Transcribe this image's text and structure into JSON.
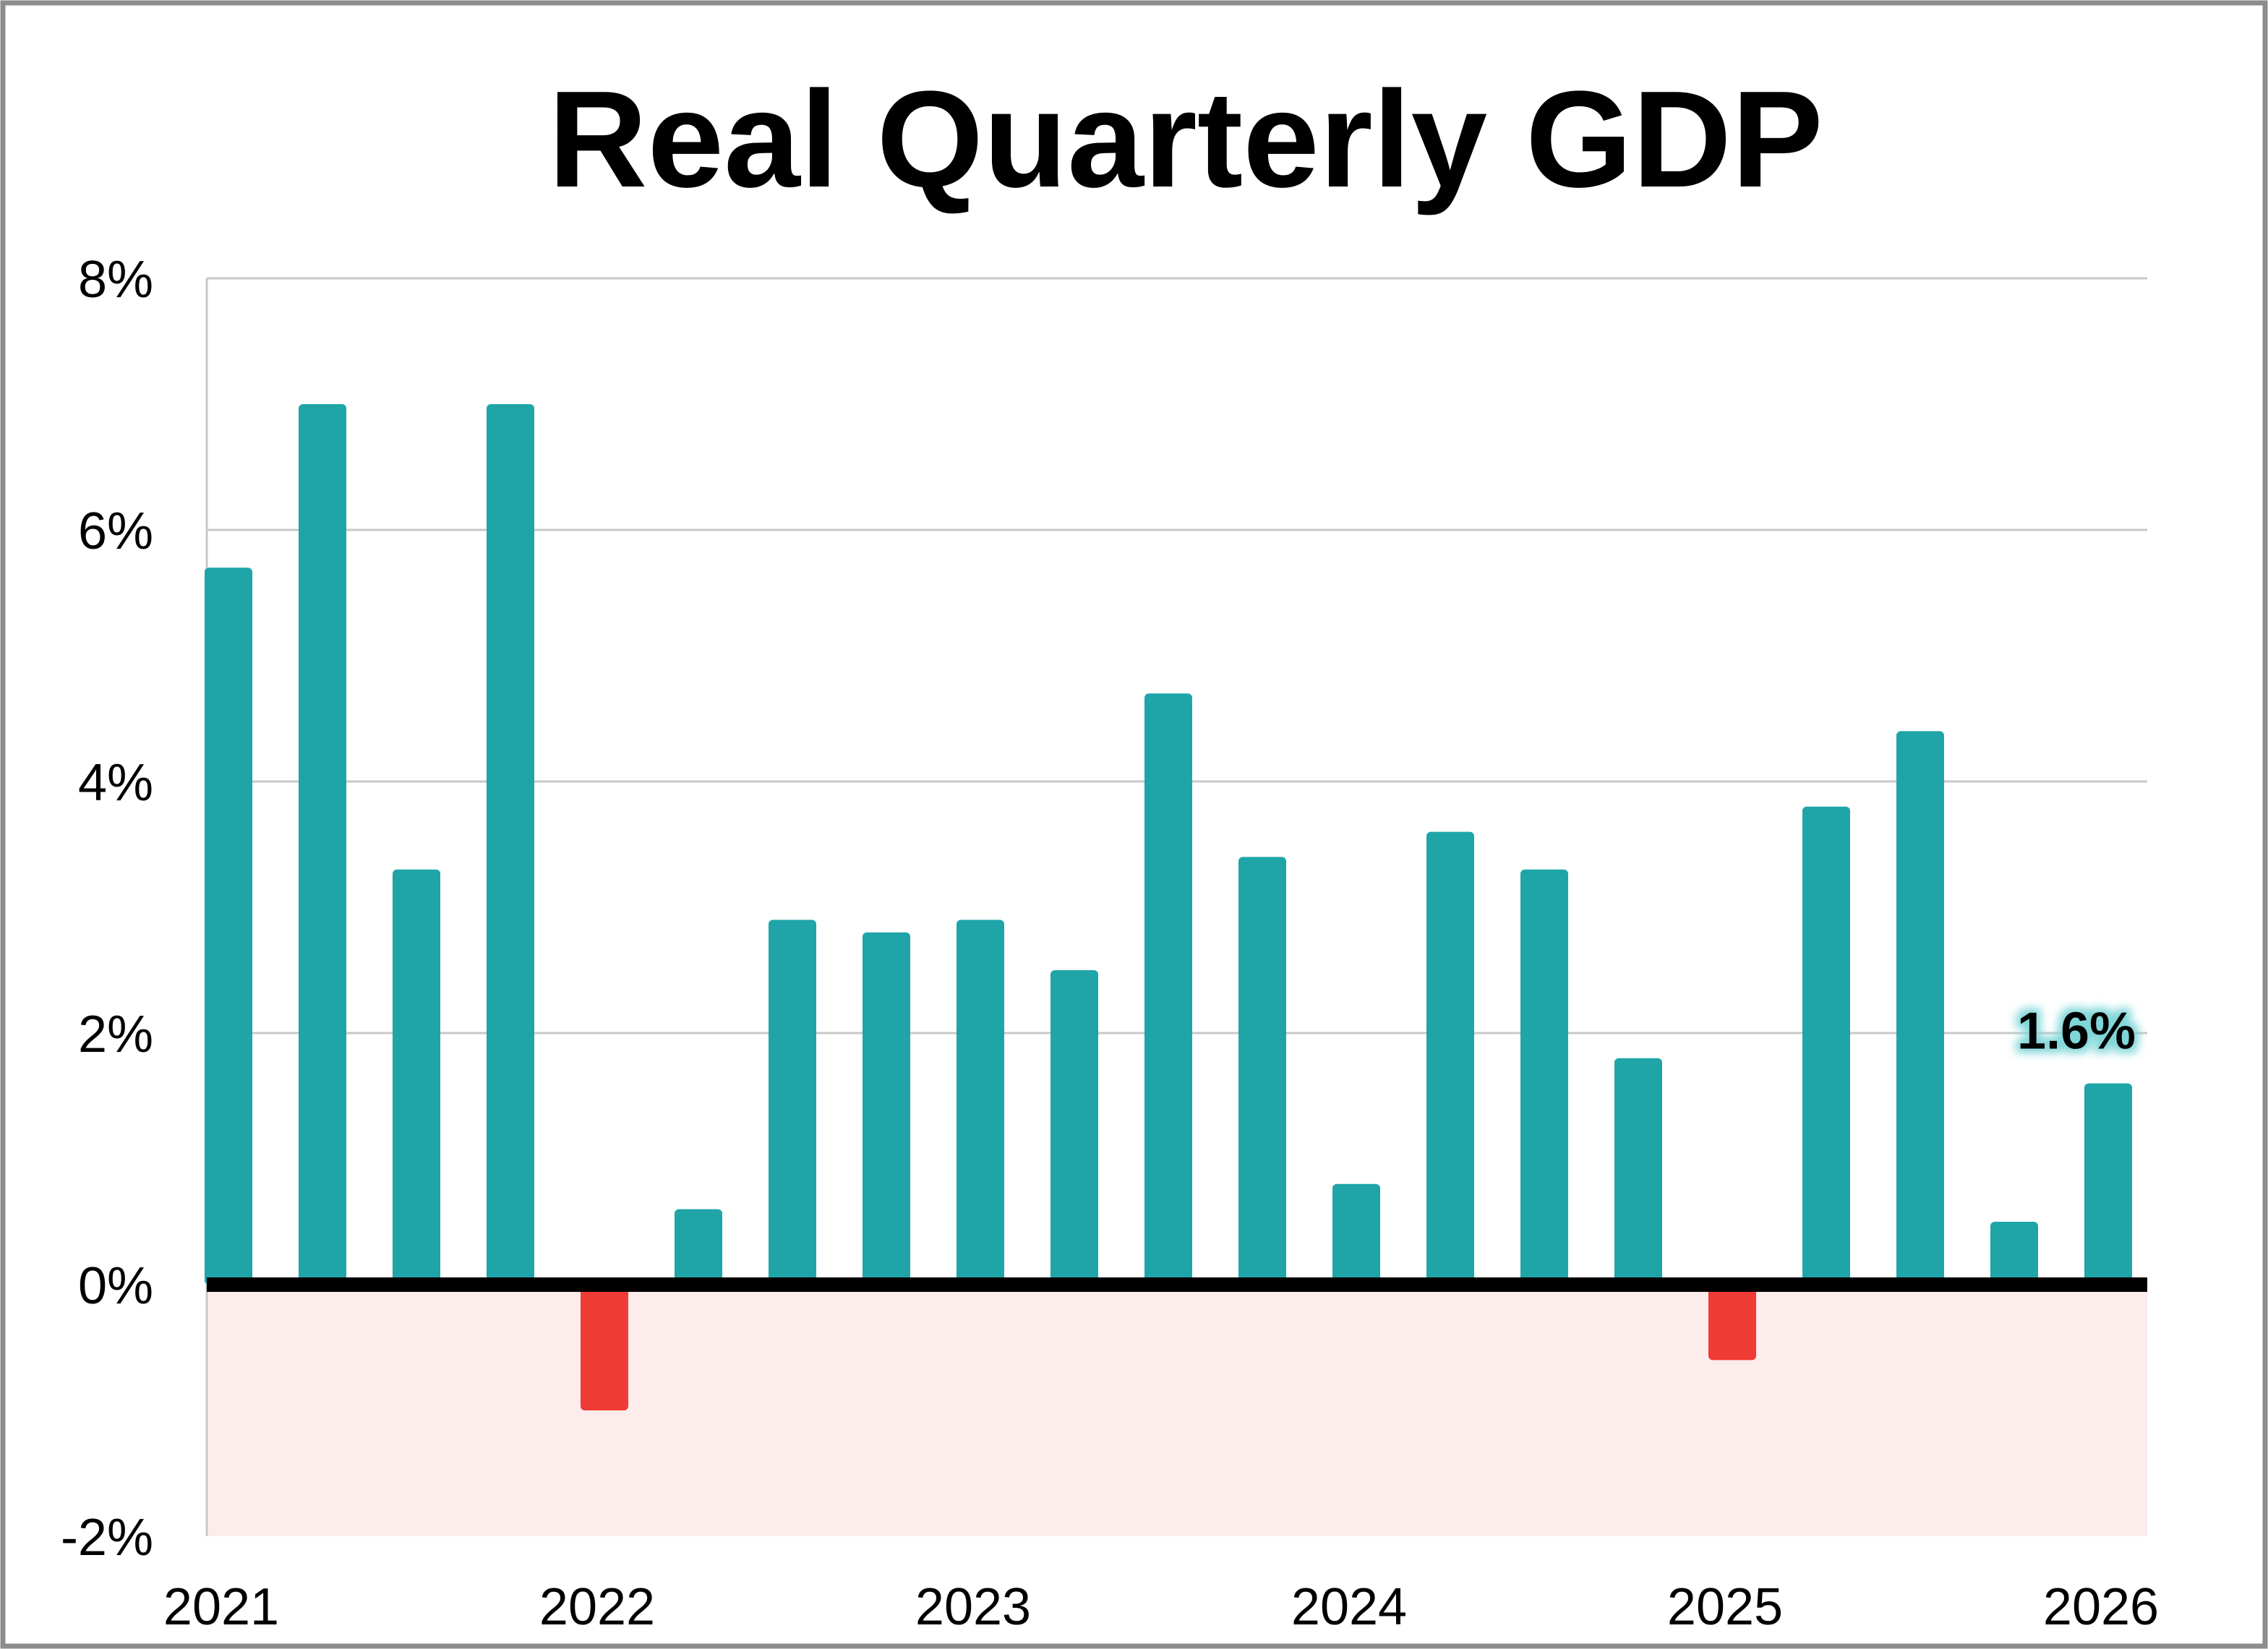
{
  "chart_data": {
    "type": "bar",
    "title": "Real Quarterly GDP",
    "xlabel": "",
    "ylabel": "",
    "ylim": [
      -2,
      8
    ],
    "yticks": [
      -2,
      0,
      2,
      4,
      6,
      8
    ],
    "ytick_labels": [
      "-2%",
      "0%",
      "2%",
      "4%",
      "6%",
      "8%"
    ],
    "x_year_labels": [
      "2021",
      "2022",
      "2023",
      "2024",
      "2025",
      "2026"
    ],
    "grid": true,
    "legend": "none",
    "values": [
      5.7,
      7.0,
      3.3,
      7.0,
      -1.0,
      0.6,
      2.9,
      2.8,
      2.9,
      2.5,
      4.7,
      3.4,
      0.8,
      3.6,
      3.3,
      1.8,
      -0.6,
      3.8,
      4.4,
      0.5,
      1.6
    ],
    "data_labels": [
      {
        "index": 20,
        "text": "1.6%"
      }
    ],
    "colors": {
      "positive": "#1fa5a8",
      "negative": "#f03c36",
      "negative_zone": "#fdecec",
      "zero_line": "#000000",
      "grid": "#c8c8c8",
      "frame": "#8c8c8c",
      "label_glow": "#7fd6d8"
    }
  }
}
